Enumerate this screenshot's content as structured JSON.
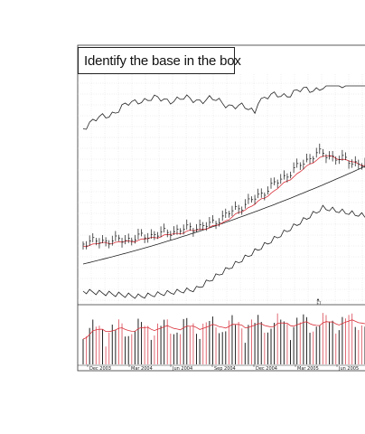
{
  "chart_data": {
    "type": "line",
    "title": "Identify the base in the box",
    "x_tick_labels": [
      "Dec 2003",
      "Mar 2004",
      "Jun 2004",
      "Sep 2004",
      "Dec 2004",
      "Mar 2005",
      "Jun 2005"
    ],
    "grid": true,
    "panels": [
      "relative-strength",
      "price-with-moving-averages",
      "volume"
    ],
    "series_colors": {
      "price_bars": "#111111",
      "short_moving_average": "#d9313a",
      "long_moving_average": "#222222",
      "relative_strength": "#222222",
      "volume_up": "#222222",
      "volume_down": "#e06a74",
      "volume_average": "#d9313a"
    },
    "event_marker": "E7"
  }
}
